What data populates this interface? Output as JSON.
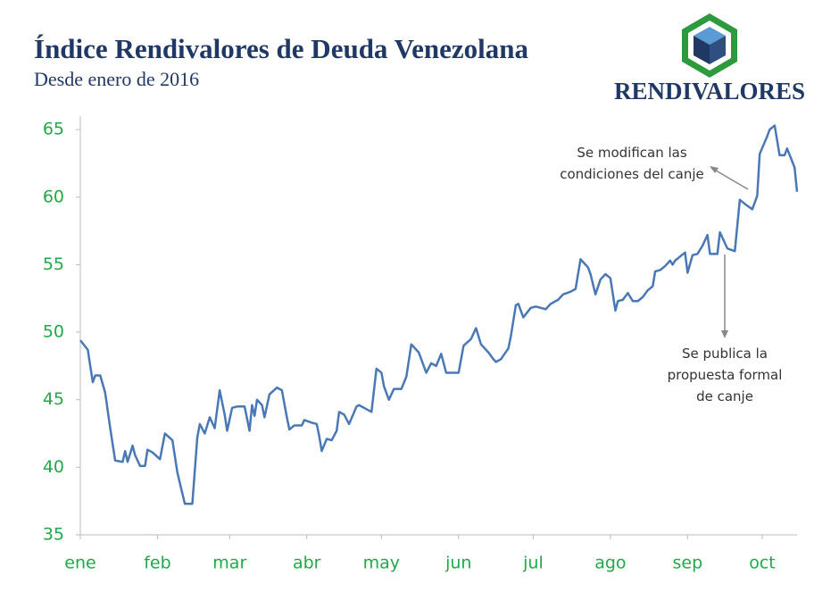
{
  "chart_data": {
    "type": "line",
    "title": "Índice Rendivalores de Deuda Venezolana",
    "subtitle": "Desde enero de 2016",
    "logo_text": "RENDIVALORES",
    "annotations": [
      [
        "Se modifican las",
        "condiciones del canje"
      ],
      [
        "Se publica la",
        "propuesta formal",
        "de canje"
      ]
    ],
    "x": [
      1,
      4,
      6,
      7,
      9,
      11,
      13,
      15,
      18,
      19,
      20,
      22,
      23,
      25,
      27,
      28,
      30,
      33,
      35,
      38,
      40,
      43,
      46,
      48,
      49,
      51,
      53,
      55,
      57,
      59,
      60,
      62,
      64,
      67,
      69,
      70,
      71,
      72,
      74,
      75,
      77,
      80,
      82,
      84,
      85,
      87,
      90,
      91,
      94,
      96,
      97,
      98,
      100,
      102,
      104,
      105,
      107,
      109,
      112,
      113,
      116,
      118,
      120,
      122,
      123,
      125,
      127,
      130,
      132,
      134,
      137,
      140,
      142,
      144,
      146,
      148,
      150,
      153,
      155,
      158,
      160,
      162,
      165,
      167,
      168,
      170,
      173,
      174,
      176,
      177,
      179,
      182,
      184,
      188,
      190,
      193,
      195,
      198,
      200,
      202,
      205,
      206,
      208,
      210,
      212,
      214,
      216,
      217,
      219,
      221,
      223,
      225,
      227,
      229,
      231,
      232,
      234,
      236,
      238,
      239,
      240,
      242,
      244,
      245,
      247,
      249,
      251,
      253,
      254,
      257,
      258,
      260,
      261,
      264,
      266,
      268,
      271,
      273,
      274,
      277,
      278,
      280,
      282,
      284,
      285,
      288,
      289
    ],
    "series": [
      {
        "name": "Índice",
        "color": "#4a78b5",
        "values": [
          49.4,
          48.7,
          46.3,
          46.8,
          46.8,
          45.5,
          42.9,
          40.5,
          40.4,
          41.2,
          40.4,
          41.6,
          40.9,
          40.1,
          40.1,
          41.3,
          41.1,
          40.6,
          42.5,
          42.0,
          39.6,
          37.3,
          37.3,
          42.2,
          43.2,
          42.5,
          43.7,
          42.9,
          45.7,
          43.9,
          42.7,
          44.4,
          44.5,
          44.5,
          42.7,
          44.6,
          43.8,
          45.0,
          44.6,
          43.7,
          45.4,
          45.9,
          45.7,
          43.7,
          42.8,
          43.1,
          43.1,
          43.5,
          43.3,
          43.2,
          42.3,
          41.2,
          42.1,
          42.0,
          42.7,
          44.1,
          43.9,
          43.2,
          44.5,
          44.6,
          44.3,
          44.1,
          47.3,
          47.0,
          46.0,
          45.0,
          45.8,
          45.8,
          46.7,
          49.1,
          48.5,
          47.0,
          47.7,
          47.5,
          48.4,
          47.0,
          47.0,
          47.0,
          49.0,
          49.5,
          50.3,
          49.1,
          48.5,
          48.0,
          47.8,
          48.0,
          48.8,
          49.7,
          52.0,
          52.1,
          51.1,
          51.8,
          51.9,
          51.7,
          52.1,
          52.4,
          52.8,
          53.0,
          53.2,
          55.4,
          54.8,
          54.3,
          52.8,
          53.9,
          54.3,
          54.0,
          51.6,
          52.3,
          52.4,
          52.9,
          52.3,
          52.3,
          52.6,
          53.1,
          53.4,
          54.5,
          54.6,
          54.9,
          55.3,
          55.0,
          55.3,
          55.6,
          55.9,
          54.4,
          55.7,
          55.8,
          56.4,
          57.2,
          55.8,
          55.8,
          57.4,
          56.6,
          56.2,
          56.0,
          59.8,
          59.5,
          59.1,
          60.1,
          63.2,
          64.5,
          65.0,
          65.3,
          63.1,
          63.1,
          63.6,
          62.2,
          60.4
        ]
      }
    ],
    "xlim": [
      1,
      289
    ],
    "xticks": [
      {
        "value": 1,
        "label": "ene"
      },
      {
        "value": 32,
        "label": "feb"
      },
      {
        "value": 61,
        "label": "mar"
      },
      {
        "value": 92,
        "label": "abr"
      },
      {
        "value": 122,
        "label": "may"
      },
      {
        "value": 153,
        "label": "jun"
      },
      {
        "value": 183,
        "label": "jul"
      },
      {
        "value": 214,
        "label": "ago"
      },
      {
        "value": 245,
        "label": "sep"
      },
      {
        "value": 275,
        "label": "oct"
      }
    ],
    "ylim": [
      35,
      66
    ],
    "yticks": [
      35,
      40,
      45,
      50,
      55,
      60,
      65
    ]
  }
}
